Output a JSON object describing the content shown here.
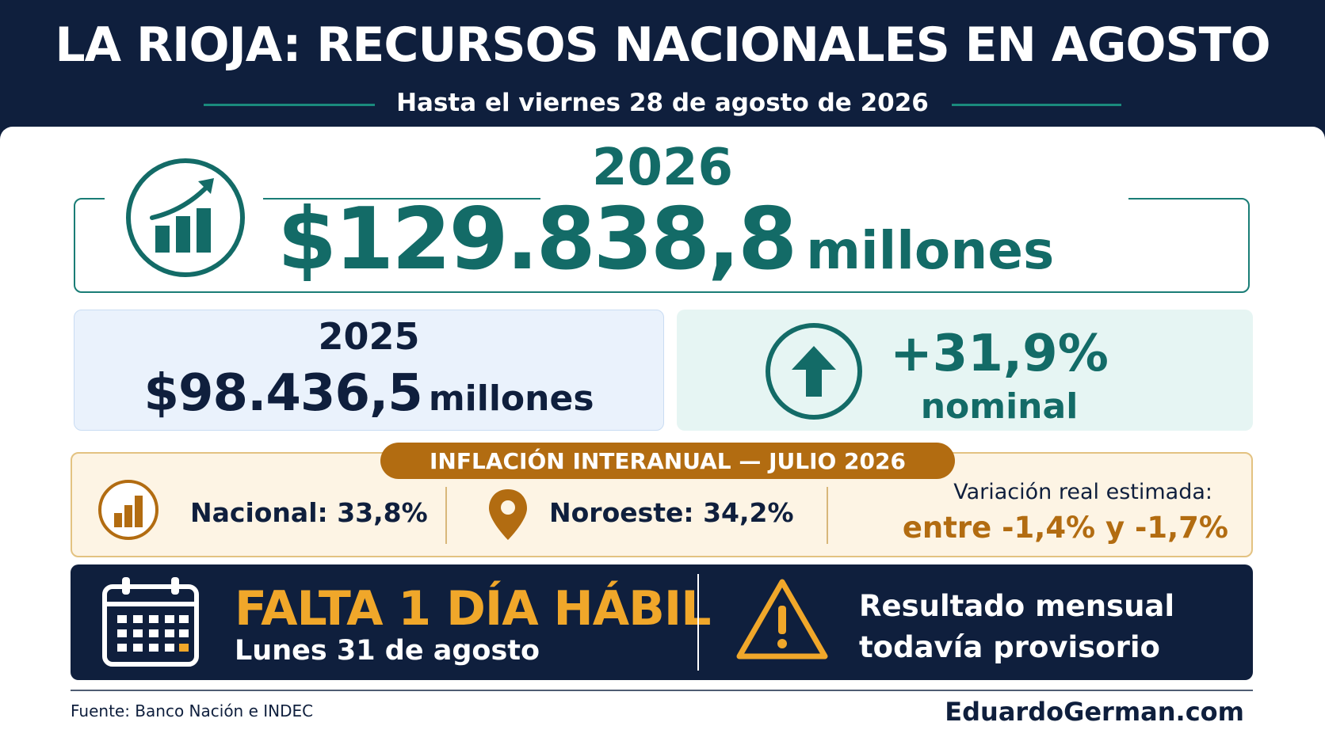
{
  "header": {
    "title": "LA RIOJA: RECURSOS NACIONALES EN AGOSTO",
    "subtitle": "Hasta el viernes 28 de agosto de 2026"
  },
  "current": {
    "year": "2026",
    "amount": "$129.838,8",
    "unit": "millones",
    "icon": "trend-chart-icon"
  },
  "previous": {
    "year": "2025",
    "amount": "$98.436,5",
    "unit": "millones"
  },
  "change": {
    "value": "+31,9%",
    "label": "nominal",
    "icon": "arrow-up-icon"
  },
  "inflation": {
    "title": "INFLACIÓN INTERANUAL — JULIO 2026",
    "national": "Nacional: 33,8%",
    "northwest": "Noroeste: 34,2%",
    "real_label": "Variación real estimada:",
    "real_value": "entre -1,4% y -1,7%"
  },
  "status": {
    "days_left": "FALTA 1 DÍA HÁBIL",
    "date": "Lunes 31 de agosto",
    "result_line1": "Resultado mensual",
    "result_line2": "todavía provisorio"
  },
  "footer": {
    "source": "Fuente: Banco Nación e INDEC",
    "site": "EduardoGerman.com"
  },
  "colors": {
    "navy": "#0f1f3d",
    "teal": "#136b67",
    "amber": "#b26c11",
    "gold": "#f0a72a"
  }
}
